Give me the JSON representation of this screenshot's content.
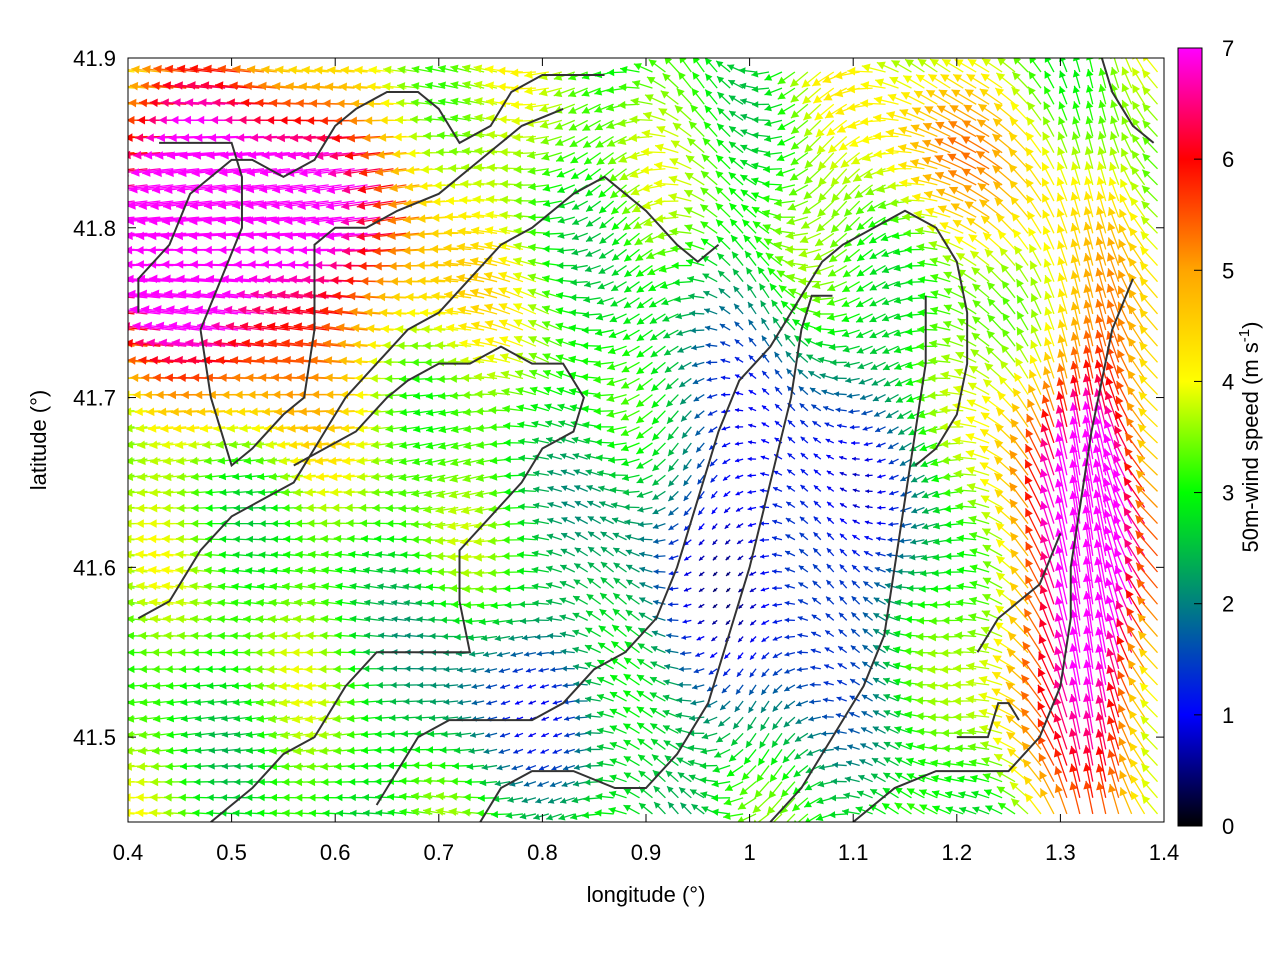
{
  "chart_data": {
    "type": "vector-field",
    "xlabel": "longitude (°)",
    "ylabel": "latitude (°)",
    "xlim": [
      0.4,
      1.4
    ],
    "ylim": [
      41.45,
      41.9
    ],
    "xticks": [
      "0.4",
      "0.5",
      "0.6",
      "0.7",
      "0.8",
      "0.9",
      "1",
      "1.1",
      "1.2",
      "1.3",
      "1.4"
    ],
    "yticks": [
      "41.5",
      "41.6",
      "41.7",
      "41.8",
      "41.9"
    ],
    "colorbar": {
      "label": "50m-wind speed (m s-1)",
      "label_main": "50m-wind speed (m s",
      "label_sup": "-1",
      "label_close": ")",
      "range": [
        0,
        7
      ],
      "ticks": [
        "0",
        "1",
        "2",
        "3",
        "4",
        "5",
        "6",
        "7"
      ],
      "colors": [
        "#000000",
        "#0000ff",
        "#008080",
        "#00ff00",
        "#ffff00",
        "#ffa500",
        "#ff0000",
        "#ff00ff"
      ]
    },
    "contour_color": "#333333",
    "contours": [
      [
        [
          0.41,
          41.75
        ],
        [
          0.41,
          41.77
        ],
        [
          0.44,
          41.79
        ],
        [
          0.46,
          41.82
        ],
        [
          0.48,
          41.83
        ],
        [
          0.5,
          41.84
        ],
        [
          0.52,
          41.84
        ],
        [
          0.55,
          41.83
        ],
        [
          0.58,
          41.84
        ],
        [
          0.6,
          41.86
        ],
        [
          0.62,
          41.87
        ],
        [
          0.65,
          41.88
        ],
        [
          0.68,
          41.88
        ],
        [
          0.7,
          41.87
        ],
        [
          0.72,
          41.85
        ],
        [
          0.75,
          41.86
        ],
        [
          0.77,
          41.88
        ],
        [
          0.8,
          41.89
        ],
        [
          0.83,
          41.89
        ],
        [
          0.86,
          41.89
        ]
      ],
      [
        [
          0.43,
          41.85
        ],
        [
          0.46,
          41.85
        ],
        [
          0.5,
          41.85
        ],
        [
          0.51,
          41.83
        ],
        [
          0.51,
          41.8
        ],
        [
          0.49,
          41.77
        ],
        [
          0.47,
          41.74
        ],
        [
          0.48,
          41.7
        ],
        [
          0.5,
          41.66
        ],
        [
          0.52,
          41.67
        ],
        [
          0.55,
          41.69
        ],
        [
          0.57,
          41.7
        ],
        [
          0.58,
          41.74
        ],
        [
          0.58,
          41.79
        ],
        [
          0.6,
          41.8
        ],
        [
          0.63,
          41.8
        ],
        [
          0.66,
          41.81
        ],
        [
          0.7,
          41.82
        ],
        [
          0.74,
          41.84
        ],
        [
          0.78,
          41.86
        ],
        [
          0.82,
          41.87
        ]
      ],
      [
        [
          0.41,
          41.57
        ],
        [
          0.44,
          41.58
        ],
        [
          0.47,
          41.61
        ],
        [
          0.5,
          41.63
        ],
        [
          0.53,
          41.64
        ],
        [
          0.56,
          41.65
        ],
        [
          0.59,
          41.68
        ],
        [
          0.61,
          41.7
        ],
        [
          0.64,
          41.72
        ],
        [
          0.67,
          41.74
        ],
        [
          0.7,
          41.75
        ],
        [
          0.73,
          41.77
        ],
        [
          0.76,
          41.79
        ],
        [
          0.79,
          41.8
        ],
        [
          0.83,
          41.82
        ],
        [
          0.86,
          41.83
        ],
        [
          0.88,
          41.82
        ],
        [
          0.9,
          41.81
        ],
        [
          0.93,
          41.79
        ],
        [
          0.95,
          41.78
        ],
        [
          0.97,
          41.79
        ]
      ],
      [
        [
          0.48,
          41.45
        ],
        [
          0.52,
          41.47
        ],
        [
          0.55,
          41.49
        ],
        [
          0.58,
          41.5
        ],
        [
          0.61,
          41.53
        ],
        [
          0.64,
          41.55
        ],
        [
          0.67,
          41.55
        ],
        [
          0.7,
          41.55
        ],
        [
          0.73,
          41.55
        ],
        [
          0.72,
          41.58
        ],
        [
          0.72,
          41.61
        ],
        [
          0.75,
          41.63
        ],
        [
          0.78,
          41.65
        ],
        [
          0.8,
          41.67
        ],
        [
          0.83,
          41.68
        ],
        [
          0.84,
          41.7
        ],
        [
          0.82,
          41.72
        ],
        [
          0.79,
          41.72
        ],
        [
          0.76,
          41.73
        ],
        [
          0.73,
          41.72
        ],
        [
          0.7,
          41.72
        ],
        [
          0.67,
          41.71
        ],
        [
          0.65,
          41.7
        ],
        [
          0.62,
          41.68
        ],
        [
          0.59,
          41.67
        ],
        [
          0.56,
          41.66
        ]
      ],
      [
        [
          0.64,
          41.46
        ],
        [
          0.66,
          41.48
        ],
        [
          0.68,
          41.5
        ],
        [
          0.71,
          41.51
        ],
        [
          0.75,
          41.51
        ],
        [
          0.79,
          41.51
        ],
        [
          0.82,
          41.52
        ],
        [
          0.85,
          41.54
        ],
        [
          0.88,
          41.55
        ],
        [
          0.91,
          41.57
        ],
        [
          0.93,
          41.6
        ],
        [
          0.95,
          41.64
        ],
        [
          0.97,
          41.68
        ],
        [
          0.99,
          41.71
        ],
        [
          1.02,
          41.73
        ],
        [
          1.05,
          41.76
        ],
        [
          1.07,
          41.78
        ],
        [
          1.09,
          41.79
        ],
        [
          1.12,
          41.8
        ],
        [
          1.15,
          41.81
        ],
        [
          1.18,
          41.8
        ],
        [
          1.2,
          41.78
        ],
        [
          1.21,
          41.75
        ],
        [
          1.21,
          41.72
        ],
        [
          1.2,
          41.69
        ],
        [
          1.18,
          41.67
        ],
        [
          1.16,
          41.66
        ]
      ],
      [
        [
          0.74,
          41.45
        ],
        [
          0.76,
          41.47
        ],
        [
          0.79,
          41.48
        ],
        [
          0.83,
          41.48
        ],
        [
          0.87,
          41.47
        ],
        [
          0.9,
          41.47
        ],
        [
          0.93,
          41.49
        ],
        [
          0.96,
          41.52
        ],
        [
          0.98,
          41.56
        ],
        [
          1.0,
          41.6
        ],
        [
          1.02,
          41.65
        ],
        [
          1.04,
          41.7
        ],
        [
          1.05,
          41.74
        ],
        [
          1.06,
          41.76
        ],
        [
          1.08,
          41.76
        ]
      ],
      [
        [
          1.02,
          41.45
        ],
        [
          1.05,
          41.47
        ],
        [
          1.08,
          41.5
        ],
        [
          1.11,
          41.53
        ],
        [
          1.13,
          41.56
        ],
        [
          1.14,
          41.6
        ],
        [
          1.15,
          41.64
        ],
        [
          1.16,
          41.68
        ],
        [
          1.17,
          41.72
        ],
        [
          1.17,
          41.76
        ]
      ],
      [
        [
          1.1,
          41.45
        ],
        [
          1.14,
          41.47
        ],
        [
          1.18,
          41.48
        ],
        [
          1.22,
          41.48
        ],
        [
          1.25,
          41.48
        ],
        [
          1.28,
          41.5
        ],
        [
          1.3,
          41.53
        ],
        [
          1.31,
          41.57
        ],
        [
          1.31,
          41.6
        ],
        [
          1.32,
          41.64
        ],
        [
          1.33,
          41.68
        ],
        [
          1.34,
          41.71
        ],
        [
          1.35,
          41.74
        ],
        [
          1.37,
          41.77
        ]
      ],
      [
        [
          1.22,
          41.55
        ],
        [
          1.24,
          41.57
        ],
        [
          1.26,
          41.58
        ],
        [
          1.28,
          41.59
        ],
        [
          1.3,
          41.62
        ]
      ],
      [
        [
          1.2,
          41.5
        ],
        [
          1.23,
          41.5
        ],
        [
          1.24,
          41.52
        ],
        [
          1.25,
          41.52
        ],
        [
          1.26,
          41.51
        ]
      ],
      [
        [
          1.34,
          41.9
        ],
        [
          1.35,
          41.88
        ],
        [
          1.37,
          41.86
        ],
        [
          1.39,
          41.85
        ]
      ]
    ]
  }
}
